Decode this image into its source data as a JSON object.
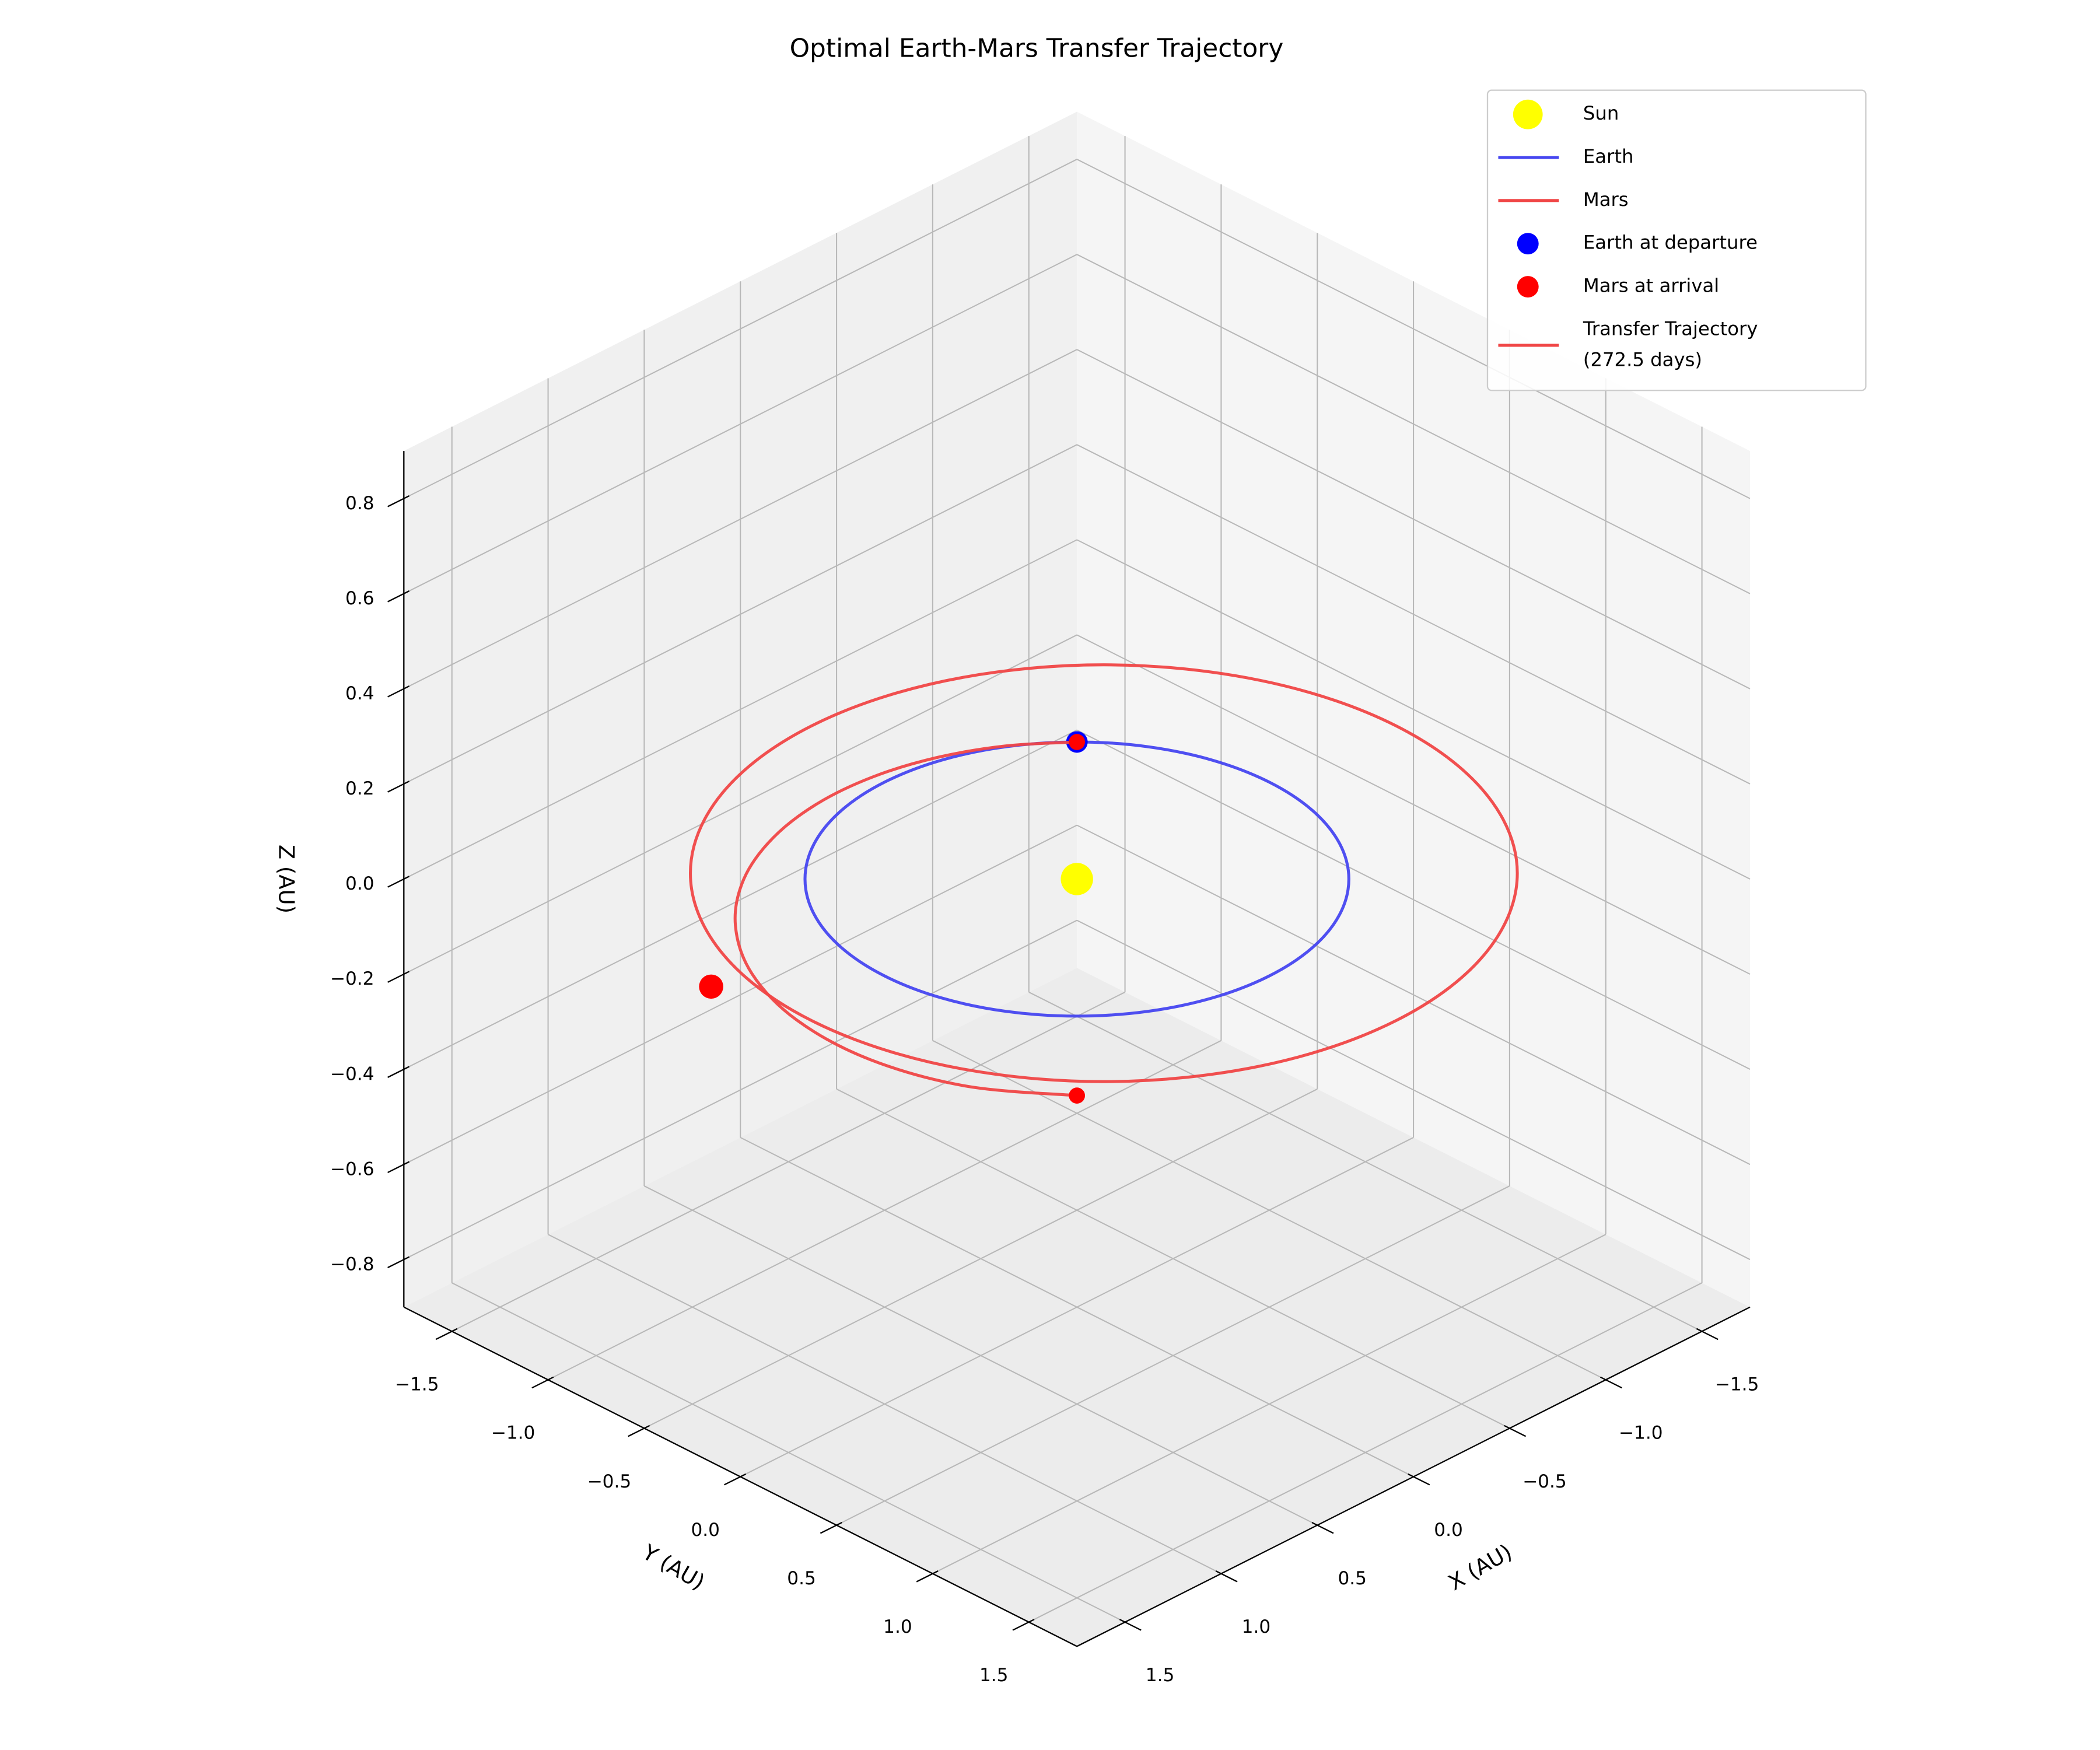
{
  "chart_data": {
    "type": "line3d",
    "title": "Optimal Earth-Mars Transfer Trajectory",
    "xlabel": "X (AU)",
    "ylabel": "Y (AU)",
    "zlabel": "Z (AU)",
    "xlim": [
      -1.75,
      1.75
    ],
    "ylim": [
      -1.75,
      1.75
    ],
    "zlim": [
      -0.9,
      0.9
    ],
    "xticks": [
      {
        "value": -1.5,
        "label": "−1.5"
      },
      {
        "value": -1,
        "label": "−1.0"
      },
      {
        "value": -0.5,
        "label": "−0.5"
      },
      {
        "value": 0,
        "label": "0.0"
      },
      0.5,
      {
        "value": 1,
        "label": "1.0"
      },
      1.5
    ],
    "yticks": [
      {
        "value": -1.5,
        "label": "−1.5"
      },
      {
        "value": -1,
        "label": "−1.0"
      },
      {
        "value": -0.5,
        "label": "−0.5"
      },
      {
        "value": 0,
        "label": "0.0"
      },
      0.5,
      {
        "value": 1,
        "label": "1.0"
      },
      1.5
    ],
    "zticks": [
      {
        "value": -0.8,
        "label": "−0.8"
      },
      {
        "value": -0.6,
        "label": "−0.6"
      },
      {
        "value": -0.4,
        "label": "−0.4"
      },
      {
        "value": -0.2,
        "label": "−0.2"
      },
      {
        "value": 0,
        "label": "0.0"
      },
      0.2,
      0.4,
      0.6,
      0.8
    ],
    "grid": true,
    "legend": "upper right",
    "series": [
      {
        "name": "Sun",
        "type": "scatter",
        "color": "#ffff00",
        "x": [
          0
        ],
        "y": [
          0
        ],
        "z": [
          0
        ]
      },
      {
        "name": "Earth",
        "type": "line",
        "color": "#4646f0",
        "closed": true,
        "x": [
          1,
          0.966,
          0.866,
          0.707,
          0.5,
          0.259,
          0,
          -0.259,
          -0.5,
          -0.707,
          -0.866,
          -0.966,
          -1,
          -0.966,
          -0.866,
          -0.707,
          -0.5,
          -0.259,
          0,
          0.259,
          0.5,
          0.707,
          0.866,
          0.966
        ],
        "y": [
          0,
          0.259,
          0.5,
          0.707,
          0.866,
          0.966,
          1,
          0.966,
          0.866,
          0.707,
          0.5,
          0.259,
          0,
          -0.259,
          -0.5,
          -0.707,
          -0.866,
          -0.966,
          -1,
          -0.966,
          -0.866,
          -0.707,
          -0.5,
          -0.259
        ],
        "z": [
          0,
          0,
          0,
          0,
          0,
          0,
          0,
          0,
          0,
          0,
          0,
          0,
          0,
          0,
          0,
          0,
          0,
          0,
          0,
          0,
          0,
          0,
          0,
          0
        ]
      },
      {
        "name": "Mars",
        "type": "line",
        "color": "#f04646",
        "closed": true,
        "x": [
          1.42,
          1.368,
          1.216,
          0.975,
          0.66,
          0.294,
          -0.1,
          -0.494,
          -0.86,
          -1.175,
          -1.416,
          -1.568,
          -1.62,
          -1.568,
          -1.416,
          -1.175,
          -0.86,
          -0.494,
          -0.1,
          0.294,
          0.66,
          0.975,
          1.216,
          1.368
        ],
        "y": [
          0.04,
          0.434,
          0.8,
          1.115,
          1.356,
          1.508,
          1.56,
          1.508,
          1.356,
          1.115,
          0.8,
          0.434,
          0.04,
          -0.354,
          -0.72,
          -1.035,
          -1.276,
          -1.428,
          -1.48,
          -1.428,
          -1.276,
          -1.035,
          -0.72,
          -0.354
        ],
        "z": [
          0,
          0,
          0,
          0,
          0,
          0,
          0,
          0,
          0,
          0,
          0,
          0,
          0,
          0,
          0,
          0,
          0,
          0,
          0,
          0,
          0,
          0,
          0,
          0
        ]
      },
      {
        "name": "Earth at departure",
        "type": "scatter",
        "color": "#0000ff",
        "x": [
          -0.707
        ],
        "y": [
          -0.707
        ],
        "z": [
          0
        ]
      },
      {
        "name": "Mars at arrival",
        "type": "scatter",
        "color": "#ff0000",
        "x": [
          1.506
        ],
        "y": [
          -0.396
        ],
        "z": [
          0
        ]
      },
      {
        "name": "Transfer Trajectory\n(272.5 days)",
        "type": "line",
        "color": "#f04646",
        "closed": false,
        "end_markers": true,
        "x": [
          -0.707,
          -0.503,
          -0.265,
          0,
          0.285,
          0.579,
          0.866,
          1.126,
          1.333,
          1.456,
          1.469,
          1.355,
          1.117
        ],
        "y": [
          -0.707,
          -0.871,
          -0.99,
          -1.057,
          -1.064,
          -1.002,
          -0.866,
          -0.65,
          -0.357,
          0,
          0.394,
          0.783,
          1.117
        ],
        "z": [
          0,
          0,
          0,
          0,
          0,
          0,
          0,
          0,
          0,
          0,
          0,
          0,
          0
        ]
      }
    ]
  }
}
